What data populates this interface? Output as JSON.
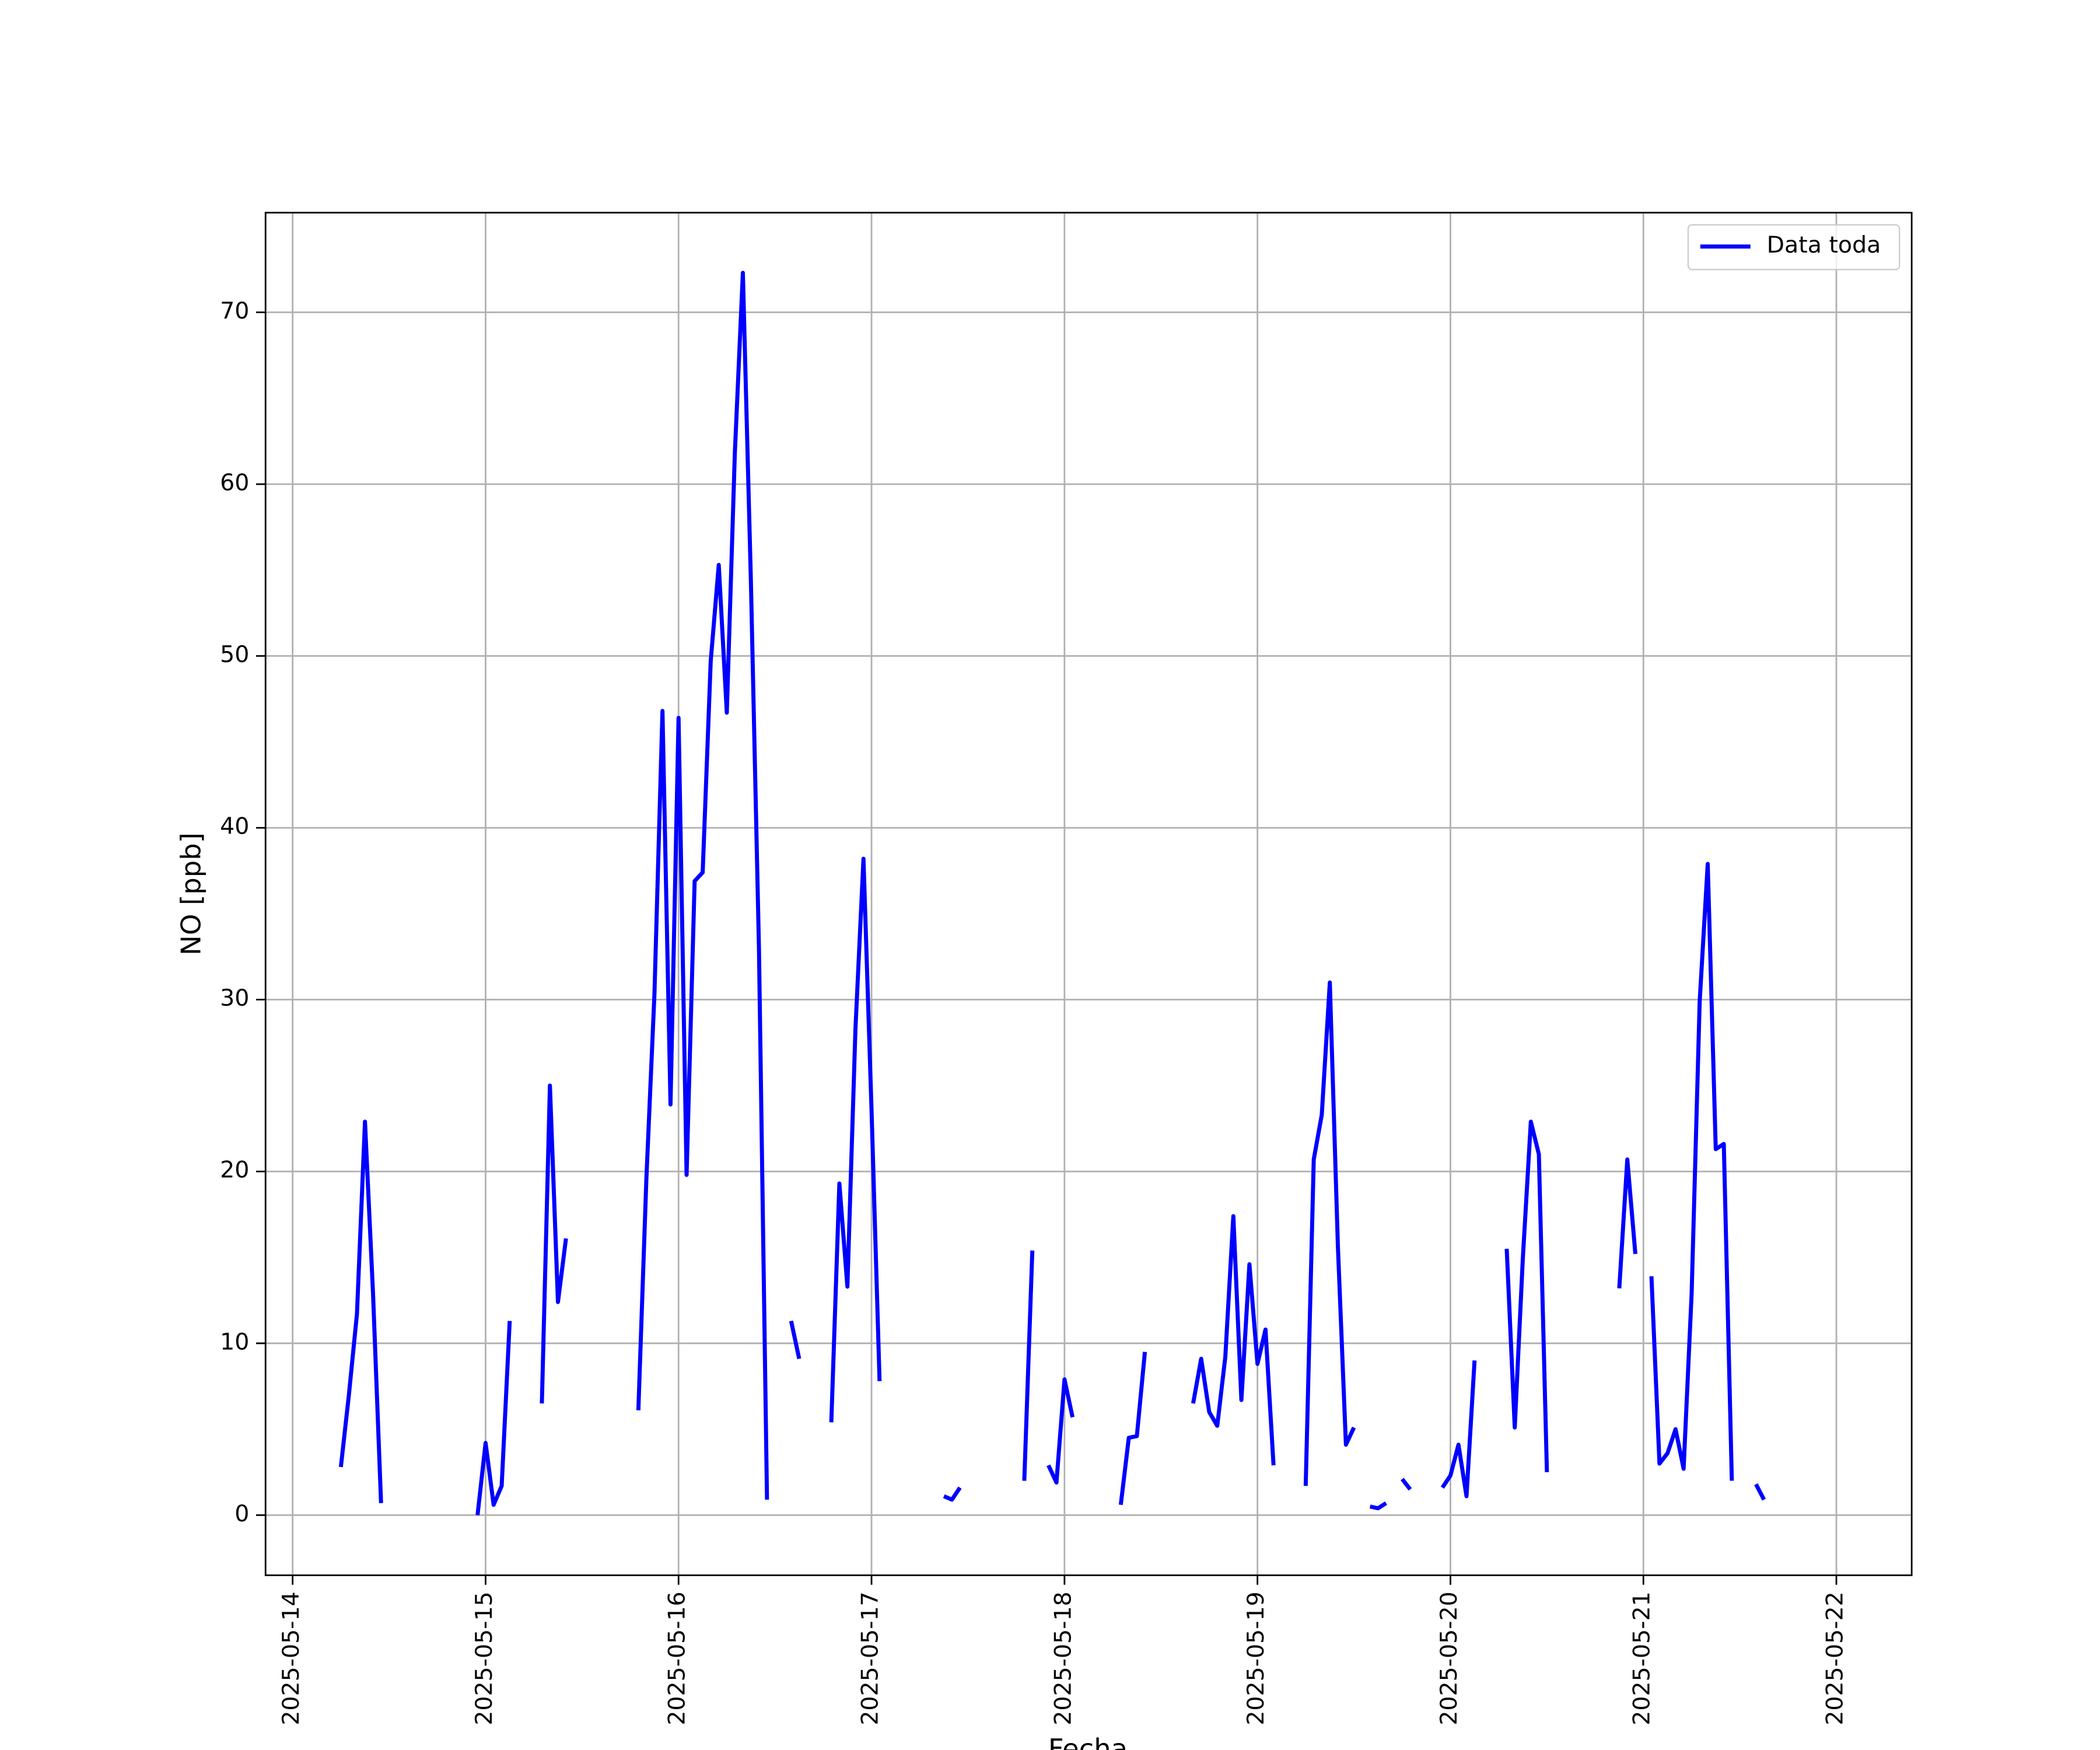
{
  "chart_data": {
    "type": "line",
    "xlabel": "Fecha",
    "ylabel": "NO [ppb]",
    "x": [
      "2025-05-14T06:00",
      "2025-05-14T07:00",
      "2025-05-14T08:00",
      "2025-05-14T09:00",
      "2025-05-14T10:00",
      "2025-05-14T11:00",
      "2025-05-14T12:00",
      "2025-05-14T23:00",
      "2025-05-15T00:00",
      "2025-05-15T01:00",
      "2025-05-15T02:00",
      "2025-05-15T03:00",
      "2025-05-15T04:00",
      "2025-05-15T07:00",
      "2025-05-15T08:00",
      "2025-05-15T09:00",
      "2025-05-15T10:00",
      "2025-05-15T11:00",
      "2025-05-15T19:00",
      "2025-05-15T20:00",
      "2025-05-15T21:00",
      "2025-05-15T22:00",
      "2025-05-15T23:00",
      "2025-05-16T00:00",
      "2025-05-16T01:00",
      "2025-05-16T02:00",
      "2025-05-16T03:00",
      "2025-05-16T04:00",
      "2025-05-16T05:00",
      "2025-05-16T06:00",
      "2025-05-16T07:00",
      "2025-05-16T08:00",
      "2025-05-16T09:00",
      "2025-05-16T10:00",
      "2025-05-16T11:00",
      "2025-05-16T12:00",
      "2025-05-16T14:00",
      "2025-05-16T15:00",
      "2025-05-16T16:00",
      "2025-05-16T19:00",
      "2025-05-16T20:00",
      "2025-05-16T21:00",
      "2025-05-16T22:00",
      "2025-05-16T23:00",
      "2025-05-17T00:00",
      "2025-05-17T01:00",
      "2025-05-17T02:00",
      "2025-05-17T09:00",
      "2025-05-17T10:00",
      "2025-05-17T11:00",
      "2025-05-17T12:00",
      "2025-05-17T19:00",
      "2025-05-17T20:00",
      "2025-05-17T21:00",
      "2025-05-17T22:00",
      "2025-05-17T23:00",
      "2025-05-18T00:00",
      "2025-05-18T01:00",
      "2025-05-18T02:00",
      "2025-05-18T07:00",
      "2025-05-18T08:00",
      "2025-05-18T09:00",
      "2025-05-18T10:00",
      "2025-05-18T11:00",
      "2025-05-18T16:00",
      "2025-05-18T17:00",
      "2025-05-18T18:00",
      "2025-05-18T19:00",
      "2025-05-18T20:00",
      "2025-05-18T21:00",
      "2025-05-18T22:00",
      "2025-05-18T23:00",
      "2025-05-19T00:00",
      "2025-05-19T01:00",
      "2025-05-19T02:00",
      "2025-05-19T03:00",
      "2025-05-19T06:00",
      "2025-05-19T07:00",
      "2025-05-19T08:00",
      "2025-05-19T09:00",
      "2025-05-19T10:00",
      "2025-05-19T11:00",
      "2025-05-19T12:00",
      "2025-05-19T13:00",
      "2025-05-19T14:00",
      "2025-05-19T15:00",
      "2025-05-19T16:00",
      "2025-05-19T17:00",
      "2025-05-19T18:00",
      "2025-05-19T19:00",
      "2025-05-19T20:00",
      "2025-05-19T23:00",
      "2025-05-20T00:00",
      "2025-05-20T01:00",
      "2025-05-20T02:00",
      "2025-05-20T03:00",
      "2025-05-20T04:00",
      "2025-05-20T07:00",
      "2025-05-20T08:00",
      "2025-05-20T09:00",
      "2025-05-20T10:00",
      "2025-05-20T11:00",
      "2025-05-20T12:00",
      "2025-05-20T13:00",
      "2025-05-20T21:00",
      "2025-05-20T22:00",
      "2025-05-20T23:00",
      "2025-05-21T00:00",
      "2025-05-21T01:00",
      "2025-05-21T02:00",
      "2025-05-21T03:00",
      "2025-05-21T04:00",
      "2025-05-21T05:00",
      "2025-05-21T06:00",
      "2025-05-21T07:00",
      "2025-05-21T08:00",
      "2025-05-21T09:00",
      "2025-05-21T10:00",
      "2025-05-21T11:00",
      "2025-05-21T12:00",
      "2025-05-21T14:00",
      "2025-05-21T15:00"
    ],
    "series": [
      {
        "name": "Data toda",
        "color": "#0000ff",
        "values": [
          2.8,
          7,
          11.7,
          22.9,
          12.9,
          0.7,
          null,
          0,
          4.2,
          0.6,
          1.7,
          11.3,
          null,
          6.5,
          25,
          12.4,
          16.1,
          null,
          6.1,
          19.6,
          30.3,
          46.8,
          23.9,
          46.4,
          19.8,
          36.9,
          37.4,
          49.7,
          55.3,
          46.7,
          61.8,
          72.3,
          54.3,
          33,
          0.9,
          null,
          11.3,
          9.1,
          null,
          5.4,
          19.3,
          13.3,
          28.3,
          38.2,
          23.6,
          7.8,
          null,
          1.1,
          0.9,
          1.6,
          null,
          2.0,
          15.4,
          null,
          2.9,
          1.9,
          7.9,
          5.7,
          null,
          0.6,
          4.5,
          4.6,
          9.5,
          null,
          6.5,
          9.1,
          6,
          5.2,
          9.2,
          17.4,
          6.7,
          14.6,
          8.8,
          10.8,
          2.9,
          null,
          1.7,
          20.7,
          23.3,
          31,
          15.7,
          4.1,
          5.1,
          null,
          0.5,
          0.4,
          0.7,
          null,
          2.1,
          1.5,
          null,
          1.6,
          2.3,
          4.1,
          1.1,
          9,
          null,
          15.5,
          5.1,
          14.9,
          22.9,
          21,
          2.5,
          null,
          13.2,
          20.7,
          15.2,
          null,
          13.9,
          3,
          3.6,
          5,
          2.7,
          12.9,
          29.9,
          37.9,
          21.3,
          21.6,
          2,
          null,
          1.8,
          0.9
        ]
      }
    ],
    "xlim": [
      "2025-05-13T20:38",
      "2025-05-22T09:22"
    ],
    "xticks": [
      "2025-05-14",
      "2025-05-15",
      "2025-05-16",
      "2025-05-17",
      "2025-05-18",
      "2025-05-19",
      "2025-05-20",
      "2025-05-21",
      "2025-05-22"
    ],
    "ylim": [
      -3.5,
      75.8
    ],
    "yticks": [
      0,
      10,
      20,
      30,
      40,
      50,
      60,
      70
    ],
    "grid": true,
    "legend": "upper right"
  }
}
